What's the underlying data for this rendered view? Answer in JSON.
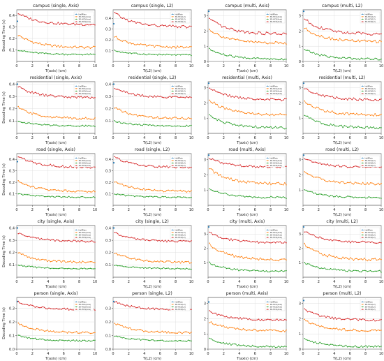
{
  "figure": {
    "legend_labels": [
      "HalfPlain",
      "3D-HC1(Axis)",
      "3D-HC2(Axis)",
      "3D-HC3(Axis)"
    ],
    "legend_labels_l2": [
      "HalfPlain",
      "3D-HC1(L2)",
      "3D-HC2(L2)",
      "3D-HC3(L2)"
    ],
    "colors": [
      "#1f77b4",
      "#ff7f0e",
      "#2ca02c",
      "#d62728"
    ]
  },
  "chart_data": [
    {
      "type": "line",
      "title": "campus (single, Axis)",
      "xlabel": "T(axis) (cm)",
      "ylabel": "Decoding Time (s)",
      "xlim": [
        0,
        10
      ],
      "ylim": [
        0,
        0.45
      ],
      "xticks": [
        0,
        2,
        4,
        6,
        8,
        10
      ],
      "yticks": [
        0.1,
        0.2,
        0.3,
        0.4
      ],
      "grid": true,
      "legend": "top-right",
      "series": [
        {
          "name": "HalfPlain",
          "values": [
            [
              0,
              0.35
            ]
          ]
        },
        {
          "name": "3D-HC1(Axis)",
          "start": 0.23,
          "end": 0.12
        },
        {
          "name": "3D-HC2(Axis)",
          "start": 0.1,
          "end": 0.06
        },
        {
          "name": "3D-HC3(Axis)",
          "start": 0.42,
          "end": 0.32
        }
      ]
    },
    {
      "type": "line",
      "title": "campus (single, L2)",
      "xlabel": "T(L2) (cm)",
      "ylabel": "",
      "xlim": [
        0,
        10
      ],
      "ylim": [
        0,
        0.48
      ],
      "xticks": [
        0,
        2,
        4,
        6,
        8,
        10
      ],
      "yticks": [
        0.1,
        0.2,
        0.3,
        0.4
      ],
      "grid": true,
      "legend": "top-right",
      "series": [
        {
          "name": "HalfPlain",
          "values": [
            [
              0,
              0.35
            ]
          ]
        },
        {
          "name": "3D-HC1(L2)",
          "start": 0.23,
          "end": 0.13
        },
        {
          "name": "3D-HC2(L2)",
          "start": 0.1,
          "end": 0.06
        },
        {
          "name": "3D-HC3(L2)",
          "start": 0.45,
          "end": 0.32
        }
      ]
    },
    {
      "type": "line",
      "title": "campus (multi, Axis)",
      "xlabel": "T(axis) (cm)",
      "ylabel": "",
      "xlim": [
        0,
        10
      ],
      "ylim": [
        0,
        3.4
      ],
      "xticks": [
        0,
        2,
        4,
        6,
        8,
        10
      ],
      "yticks": [
        0,
        1,
        2,
        3
      ],
      "grid": true,
      "legend": "top-right",
      "series": [
        {
          "name": "HalfPlain",
          "values": [
            [
              0,
              3.3
            ]
          ]
        },
        {
          "name": "3D-HC1(Axis)",
          "start": 2.1,
          "end": 1.2
        },
        {
          "name": "3D-HC2(Axis)",
          "start": 0.8,
          "end": 0.15
        },
        {
          "name": "3D-HC3(Axis)",
          "start": 2.8,
          "end": 1.8
        }
      ]
    },
    {
      "type": "line",
      "title": "campus (multi, L2)",
      "xlabel": "T(L2) (cm)",
      "ylabel": "",
      "xlim": [
        0,
        10
      ],
      "ylim": [
        0,
        3.4
      ],
      "xticks": [
        0,
        2,
        4,
        6,
        8,
        10
      ],
      "yticks": [
        0,
        1,
        2,
        3
      ],
      "grid": true,
      "legend": "top-right",
      "series": [
        {
          "name": "HalfPlain",
          "values": [
            [
              0,
              3.3
            ]
          ]
        },
        {
          "name": "3D-HC1(L2)",
          "start": 2.2,
          "end": 1.3
        },
        {
          "name": "3D-HC2(L2)",
          "start": 0.8,
          "end": 0.15
        },
        {
          "name": "3D-HC3(L2)",
          "start": 2.8,
          "end": 1.8
        }
      ]
    },
    {
      "type": "line",
      "title": "residential (single, Axis)",
      "xlabel": "T(axis) (cm)",
      "ylabel": "Decoding Time (s)",
      "xlim": [
        0,
        10
      ],
      "ylim": [
        0,
        0.42
      ],
      "xticks": [
        0,
        2,
        4,
        6,
        8,
        10
      ],
      "yticks": [
        0.1,
        0.2,
        0.3,
        0.4
      ],
      "grid": true,
      "legend": "top-right",
      "series": [
        {
          "name": "HalfPlain",
          "values": [
            [
              0,
              0.4
            ]
          ]
        },
        {
          "name": "3D-HC1(Axis)",
          "start": 0.21,
          "end": 0.12
        },
        {
          "name": "3D-HC2(Axis)",
          "start": 0.1,
          "end": 0.06
        },
        {
          "name": "3D-HC3(Axis)",
          "start": 0.38,
          "end": 0.29
        }
      ]
    },
    {
      "type": "line",
      "title": "residential (single, L2)",
      "xlabel": "T(L2) (cm)",
      "ylabel": "",
      "xlim": [
        0,
        10
      ],
      "ylim": [
        0,
        0.42
      ],
      "xticks": [
        0,
        2,
        4,
        6,
        8,
        10
      ],
      "yticks": [
        0.1,
        0.2,
        0.3,
        0.4
      ],
      "grid": true,
      "legend": "top-right",
      "series": [
        {
          "name": "HalfPlain",
          "values": [
            [
              0,
              0.4
            ]
          ]
        },
        {
          "name": "3D-HC1(L2)",
          "start": 0.21,
          "end": 0.12
        },
        {
          "name": "3D-HC2(L2)",
          "start": 0.1,
          "end": 0.06
        },
        {
          "name": "3D-HC3(L2)",
          "start": 0.37,
          "end": 0.29
        }
      ]
    },
    {
      "type": "line",
      "title": "residential (multi, Axis)",
      "xlabel": "T(axis) (cm)",
      "ylabel": "",
      "xlim": [
        0,
        10
      ],
      "ylim": [
        0,
        3.4
      ],
      "xticks": [
        0,
        2,
        4,
        6,
        8,
        10
      ],
      "yticks": [
        1,
        2,
        3
      ],
      "grid": true,
      "legend": "top-right",
      "series": [
        {
          "name": "HalfPlain",
          "values": [
            [
              0,
              3.3
            ]
          ]
        },
        {
          "name": "3D-HC1(Axis)",
          "start": 2.2,
          "end": 1.2
        },
        {
          "name": "3D-HC2(Axis)",
          "start": 1.2,
          "end": 0.35
        },
        {
          "name": "3D-HC3(Axis)",
          "start": 3.0,
          "end": 2.2
        }
      ]
    },
    {
      "type": "line",
      "title": "residential (multi, L2)",
      "xlabel": "T(L2) (cm)",
      "ylabel": "",
      "xlim": [
        0,
        10
      ],
      "ylim": [
        0,
        3.4
      ],
      "xticks": [
        0,
        2,
        4,
        6,
        8,
        10
      ],
      "yticks": [
        1,
        2,
        3
      ],
      "grid": true,
      "legend": "top-right",
      "series": [
        {
          "name": "HalfPlain",
          "values": [
            [
              0,
              3.3
            ]
          ]
        },
        {
          "name": "3D-HC1(L2)",
          "start": 2.1,
          "end": 1.2
        },
        {
          "name": "3D-HC2(L2)",
          "start": 1.2,
          "end": 0.35
        },
        {
          "name": "3D-HC3(L2)",
          "start": 3.0,
          "end": 2.2
        }
      ]
    },
    {
      "type": "line",
      "title": "road (single, Axis)",
      "xlabel": "T(axis) (cm)",
      "ylabel": "Decoding Time (s)",
      "xlim": [
        0,
        10
      ],
      "ylim": [
        0,
        0.45
      ],
      "xticks": [
        0,
        2,
        4,
        6,
        8,
        10
      ],
      "yticks": [
        0.1,
        0.2,
        0.3,
        0.4
      ],
      "grid": true,
      "legend": "top-right",
      "series": [
        {
          "name": "HalfPlain",
          "values": [
            [
              0,
              0.38
            ]
          ]
        },
        {
          "name": "3D-HC1(Axis)",
          "start": 0.21,
          "end": 0.12
        },
        {
          "name": "3D-HC2(Axis)",
          "start": 0.1,
          "end": 0.07
        },
        {
          "name": "3D-HC3(Axis)",
          "start": 0.43,
          "end": 0.33
        }
      ]
    },
    {
      "type": "line",
      "title": "road (single, L2)",
      "xlabel": "T(L2) (cm)",
      "ylabel": "",
      "xlim": [
        0,
        10
      ],
      "ylim": [
        0,
        0.45
      ],
      "xticks": [
        0,
        2,
        4,
        6,
        8,
        10
      ],
      "yticks": [
        0.1,
        0.2,
        0.3,
        0.4
      ],
      "grid": true,
      "legend": "top-right",
      "series": [
        {
          "name": "HalfPlain",
          "values": [
            [
              0,
              0.37
            ]
          ]
        },
        {
          "name": "3D-HC1(L2)",
          "start": 0.21,
          "end": 0.12
        },
        {
          "name": "3D-HC2(L2)",
          "start": 0.1,
          "end": 0.07
        },
        {
          "name": "3D-HC3(L2)",
          "start": 0.42,
          "end": 0.33
        }
      ]
    },
    {
      "type": "line",
      "title": "road (multi, Axis)",
      "xlabel": "T(axis) (cm)",
      "ylabel": "",
      "xlim": [
        0,
        10
      ],
      "ylim": [
        0,
        3.4
      ],
      "xticks": [
        0,
        2,
        4,
        6,
        8,
        10
      ],
      "yticks": [
        1,
        2,
        3
      ],
      "grid": true,
      "legend": "top-right",
      "series": [
        {
          "name": "HalfPlain",
          "values": [
            [
              0,
              3.3
            ]
          ]
        },
        {
          "name": "3D-HC1(Axis)",
          "start": 2.4,
          "end": 1.4
        },
        {
          "name": "3D-HC2(Axis)",
          "start": 1.1,
          "end": 0.5
        },
        {
          "name": "3D-HC3(Axis)",
          "start": 3.1,
          "end": 2.5
        }
      ]
    },
    {
      "type": "line",
      "title": "road (multi, L2)",
      "xlabel": "T(L2) (cm)",
      "ylabel": "",
      "xlim": [
        0,
        10
      ],
      "ylim": [
        0,
        3.4
      ],
      "xticks": [
        0,
        2,
        4,
        6,
        8,
        10
      ],
      "yticks": [
        1,
        2,
        3
      ],
      "grid": true,
      "legend": "top-right",
      "series": [
        {
          "name": "HalfPlain",
          "values": [
            [
              0,
              3.3
            ]
          ]
        },
        {
          "name": "3D-HC1(L2)",
          "start": 2.2,
          "end": 1.4
        },
        {
          "name": "3D-HC2(L2)",
          "start": 1.0,
          "end": 0.5
        },
        {
          "name": "3D-HC3(L2)",
          "start": 3.1,
          "end": 2.5
        }
      ]
    },
    {
      "type": "line",
      "title": "city (single, Axis)",
      "xlabel": "T(axis) (cm)",
      "ylabel": "Decoding Time (s)",
      "xlim": [
        0,
        10
      ],
      "ylim": [
        0,
        0.42
      ],
      "xticks": [
        0,
        2,
        4,
        6,
        8,
        10
      ],
      "yticks": [
        0.1,
        0.2,
        0.3,
        0.4
      ],
      "grid": true,
      "legend": "top-right",
      "series": [
        {
          "name": "HalfPlain",
          "values": [
            [
              0,
              0.4
            ]
          ]
        },
        {
          "name": "3D-HC1(Axis)",
          "start": 0.2,
          "end": 0.12
        },
        {
          "name": "3D-HC2(Axis)",
          "start": 0.1,
          "end": 0.07
        },
        {
          "name": "3D-HC3(Axis)",
          "start": 0.36,
          "end": 0.29
        }
      ]
    },
    {
      "type": "line",
      "title": "city (single, L2)",
      "xlabel": "T(L2) (cm)",
      "ylabel": "",
      "xlim": [
        0,
        10
      ],
      "ylim": [
        0,
        0.42
      ],
      "xticks": [
        0,
        2,
        4,
        6,
        8,
        10
      ],
      "yticks": [
        0.1,
        0.2,
        0.3,
        0.4
      ],
      "grid": true,
      "legend": "top-right",
      "series": [
        {
          "name": "HalfPlain",
          "values": [
            [
              0,
              0.4
            ]
          ]
        },
        {
          "name": "3D-HC1(L2)",
          "start": 0.2,
          "end": 0.12
        },
        {
          "name": "3D-HC2(L2)",
          "start": 0.1,
          "end": 0.07
        },
        {
          "name": "3D-HC3(L2)",
          "start": 0.36,
          "end": 0.29
        }
      ]
    },
    {
      "type": "line",
      "title": "city (multi, Axis)",
      "xlabel": "T(axis) (cm)",
      "ylabel": "",
      "xlim": [
        0,
        10
      ],
      "ylim": [
        0,
        3.6
      ],
      "xticks": [
        0,
        2,
        4,
        6,
        8,
        10
      ],
      "yticks": [
        1,
        2,
        3
      ],
      "grid": true,
      "legend": "top-right",
      "series": [
        {
          "name": "HalfPlain",
          "values": [
            [
              0,
              3.5
            ]
          ]
        },
        {
          "name": "3D-HC1(Axis)",
          "start": 2.3,
          "end": 1.2
        },
        {
          "name": "3D-HC2(Axis)",
          "start": 1.0,
          "end": 0.4
        },
        {
          "name": "3D-HC3(Axis)",
          "start": 3.1,
          "end": 2.4
        }
      ]
    },
    {
      "type": "line",
      "title": "city (multi, L2)",
      "xlabel": "T(L2) (cm)",
      "ylabel": "",
      "xlim": [
        0,
        10
      ],
      "ylim": [
        0,
        3.6
      ],
      "xticks": [
        0,
        2,
        4,
        6,
        8,
        10
      ],
      "yticks": [
        1,
        2,
        3
      ],
      "grid": true,
      "legend": "top-right",
      "series": [
        {
          "name": "HalfPlain",
          "values": [
            [
              0,
              3.5
            ]
          ]
        },
        {
          "name": "3D-HC1(L2)",
          "start": 2.3,
          "end": 1.2
        },
        {
          "name": "3D-HC2(L2)",
          "start": 1.0,
          "end": 0.4
        },
        {
          "name": "3D-HC3(L2)",
          "start": 3.2,
          "end": 2.4
        }
      ]
    },
    {
      "type": "line",
      "title": "person (single, Axis)",
      "xlabel": "T(axis) (cm)",
      "ylabel": "Decoding Time (s)",
      "xlim": [
        0,
        10
      ],
      "ylim": [
        0,
        0.38
      ],
      "xticks": [
        0,
        2,
        4,
        6,
        8,
        10
      ],
      "yticks": [
        0.0,
        0.1,
        0.2,
        0.3
      ],
      "grid": true,
      "legend": "top-right",
      "series": [
        {
          "name": "HalfPlain",
          "values": [
            [
              0,
              0.35
            ]
          ]
        },
        {
          "name": "3D-HC1(Axis)",
          "start": 0.19,
          "end": 0.12
        },
        {
          "name": "3D-HC2(Axis)",
          "start": 0.1,
          "end": 0.06
        },
        {
          "name": "3D-HC3(Axis)",
          "start": 0.35,
          "end": 0.29
        }
      ]
    },
    {
      "type": "line",
      "title": "person (single, L2)",
      "xlabel": "T(L2) (cm)",
      "ylabel": "",
      "xlim": [
        0,
        10
      ],
      "ylim": [
        0,
        0.38
      ],
      "xticks": [
        0,
        2,
        4,
        6,
        8,
        10
      ],
      "yticks": [
        0.0,
        0.1,
        0.2,
        0.3
      ],
      "grid": true,
      "legend": "top-right",
      "series": [
        {
          "name": "HalfPlain",
          "values": [
            [
              0,
              0.35
            ]
          ]
        },
        {
          "name": "3D-HC1(L2)",
          "start": 0.19,
          "end": 0.12
        },
        {
          "name": "3D-HC2(L2)",
          "start": 0.1,
          "end": 0.06
        },
        {
          "name": "3D-HC3(L2)",
          "start": 0.35,
          "end": 0.29
        }
      ]
    },
    {
      "type": "line",
      "title": "person (multi, Axis)",
      "xlabel": "T(axis) (cm)",
      "ylabel": "",
      "xlim": [
        0,
        10
      ],
      "ylim": [
        0,
        3.4
      ],
      "xticks": [
        0,
        2,
        4,
        6,
        8,
        10
      ],
      "yticks": [
        0,
        1,
        2,
        3
      ],
      "grid": true,
      "legend": "top-right",
      "series": [
        {
          "name": "HalfPlain",
          "values": [
            [
              0,
              3.1
            ]
          ]
        },
        {
          "name": "3D-HC1(Axis)",
          "start": 1.8,
          "end": 1.2
        },
        {
          "name": "3D-HC2(Axis)",
          "start": 0.7,
          "end": 0.15
        },
        {
          "name": "3D-HC3(Axis)",
          "start": 2.5,
          "end": 1.9
        }
      ]
    },
    {
      "type": "line",
      "title": "person (multi, L2)",
      "xlabel": "T(L2) (cm)",
      "ylabel": "",
      "xlim": [
        0,
        10
      ],
      "ylim": [
        0,
        3.4
      ],
      "xticks": [
        0,
        2,
        4,
        6,
        8,
        10
      ],
      "yticks": [
        0,
        1,
        2,
        3
      ],
      "grid": true,
      "legend": "top-right",
      "series": [
        {
          "name": "HalfPlain",
          "values": [
            [
              0,
              3.2
            ]
          ]
        },
        {
          "name": "3D-HC1(L2)",
          "start": 1.9,
          "end": 1.2
        },
        {
          "name": "3D-HC2(L2)",
          "start": 0.7,
          "end": 0.15
        },
        {
          "name": "3D-HC3(L2)",
          "start": 2.6,
          "end": 1.9
        }
      ]
    }
  ]
}
